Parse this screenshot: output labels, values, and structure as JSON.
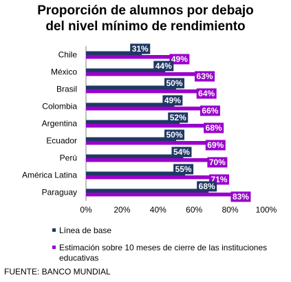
{
  "title_line1": "Proporción de alumnos por debajo",
  "title_line2": "del nivel mínimo de rendimiento",
  "source": "FUENTE: BANCO MUNDIAL",
  "colors": {
    "baseline": "#1f3864",
    "estimate": "#9900cc"
  },
  "chart_data": {
    "type": "bar",
    "orientation": "horizontal",
    "title": "Proporción de alumnos por debajo del nivel mínimo de rendimiento",
    "categories": [
      "Chile",
      "México",
      "Brasil",
      "Colombia",
      "Argentina",
      "Ecuador",
      "Perú",
      "América Latina",
      "Paraguay"
    ],
    "series": [
      {
        "name": "Línea de base",
        "values": [
          31,
          44,
          50,
          49,
          52,
          50,
          54,
          55,
          68
        ],
        "labels": [
          "31%",
          "44%",
          "50%",
          "49%",
          "52%",
          "50%",
          "54%",
          "55%",
          "68%"
        ]
      },
      {
        "name": "Estimación sobre 10 meses de cierre de las instituciones educativas",
        "values": [
          49,
          63,
          64,
          66,
          68,
          69,
          70,
          71,
          83
        ],
        "labels": [
          "49%",
          "63%",
          "64%",
          "66%",
          "68%",
          "69%",
          "70%",
          "71%",
          "83%"
        ]
      }
    ],
    "xlim": [
      0,
      100
    ],
    "ticks": [
      0,
      20,
      40,
      60,
      80,
      100
    ],
    "tick_labels": [
      "0%",
      "20%",
      "40%",
      "60%",
      "80%",
      "100%"
    ],
    "grid": false,
    "legend_position": "bottom"
  }
}
